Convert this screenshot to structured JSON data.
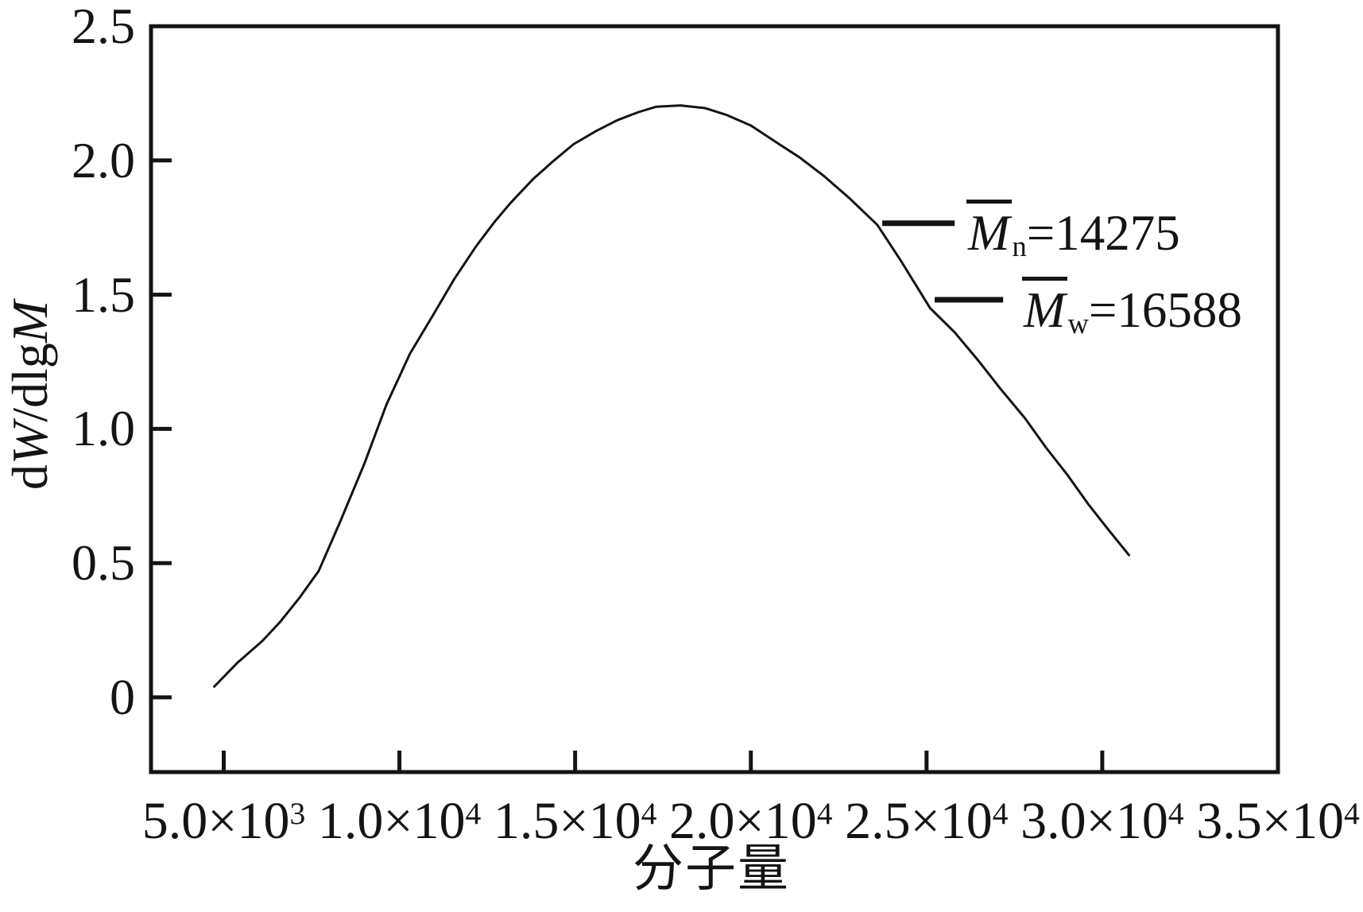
{
  "figure": {
    "background": "#ffffff",
    "line_color": "#141414"
  },
  "chart_data": {
    "type": "line",
    "title": "",
    "xlabel": "分子量",
    "ylabel": "dW/dlgM",
    "ylabel_parts": {
      "p1": "d",
      "p2": "W",
      "p3": "/dlg",
      "p4": "M"
    },
    "xlim": [
      2930,
      35000
    ],
    "ylim": [
      -0.28,
      2.5
    ],
    "grid": false,
    "legend": "none",
    "xticks": [
      {
        "value": 5000,
        "base": "5.0×10",
        "exp": "3"
      },
      {
        "value": 10000,
        "base": "1.0×10",
        "exp": "4"
      },
      {
        "value": 15000,
        "base": "1.5×10",
        "exp": "4"
      },
      {
        "value": 20000,
        "base": "2.0×10",
        "exp": "4"
      },
      {
        "value": 25000,
        "base": "2.5×10",
        "exp": "4"
      },
      {
        "value": 30000,
        "base": "3.0×10",
        "exp": "4"
      },
      {
        "value": 35000,
        "base": "3.5×10",
        "exp": "4"
      }
    ],
    "yticks": [
      {
        "value": 2.5,
        "label": "2.5"
      },
      {
        "value": 2.0,
        "label": "2.0"
      },
      {
        "value": 1.5,
        "label": "1.5"
      },
      {
        "value": 1.0,
        "label": "1.0"
      },
      {
        "value": 0.5,
        "label": "0.5"
      },
      {
        "value": 0,
        "label": "0"
      }
    ],
    "series": [
      {
        "name": "molecular-weight-distribution",
        "points": [
          [
            4730,
            0.04
          ],
          [
            5400,
            0.13
          ],
          [
            6100,
            0.21
          ],
          [
            6600,
            0.28
          ],
          [
            7150,
            0.37
          ],
          [
            7700,
            0.47
          ],
          [
            8300,
            0.65
          ],
          [
            9000,
            0.87
          ],
          [
            9630,
            1.09
          ],
          [
            10300,
            1.28
          ],
          [
            10940,
            1.42
          ],
          [
            11570,
            1.56
          ],
          [
            12180,
            1.68
          ],
          [
            12700,
            1.77
          ],
          [
            13150,
            1.84
          ],
          [
            13800,
            1.93
          ],
          [
            14400,
            2.0
          ],
          [
            14950,
            2.06
          ],
          [
            15600,
            2.11
          ],
          [
            16200,
            2.15
          ],
          [
            16800,
            2.18
          ],
          [
            17300,
            2.2
          ],
          [
            18000,
            2.205
          ],
          [
            18700,
            2.195
          ],
          [
            19300,
            2.17
          ],
          [
            20000,
            2.13
          ],
          [
            20700,
            2.07
          ],
          [
            21400,
            2.01
          ],
          [
            22100,
            1.94
          ],
          [
            22800,
            1.86
          ],
          [
            23600,
            1.76
          ],
          [
            24300,
            1.62
          ],
          [
            25100,
            1.45
          ],
          [
            25800,
            1.36
          ],
          [
            26500,
            1.25
          ],
          [
            27100,
            1.15
          ],
          [
            27800,
            1.04
          ],
          [
            28400,
            0.93
          ],
          [
            29000,
            0.83
          ],
          [
            29600,
            0.72
          ],
          [
            30200,
            0.62
          ],
          [
            30760,
            0.53
          ]
        ]
      }
    ],
    "annotations": [
      {
        "symbol": "M",
        "subscript": "n",
        "value_text": "=14275",
        "leader": {
          "v": 1.766,
          "m1": 23740,
          "m2": 25800
        }
      },
      {
        "symbol": "M",
        "subscript": "w",
        "value_text": "=16588",
        "leader": {
          "v": 1.481,
          "m1": 25230,
          "m2": 27180
        }
      }
    ]
  }
}
